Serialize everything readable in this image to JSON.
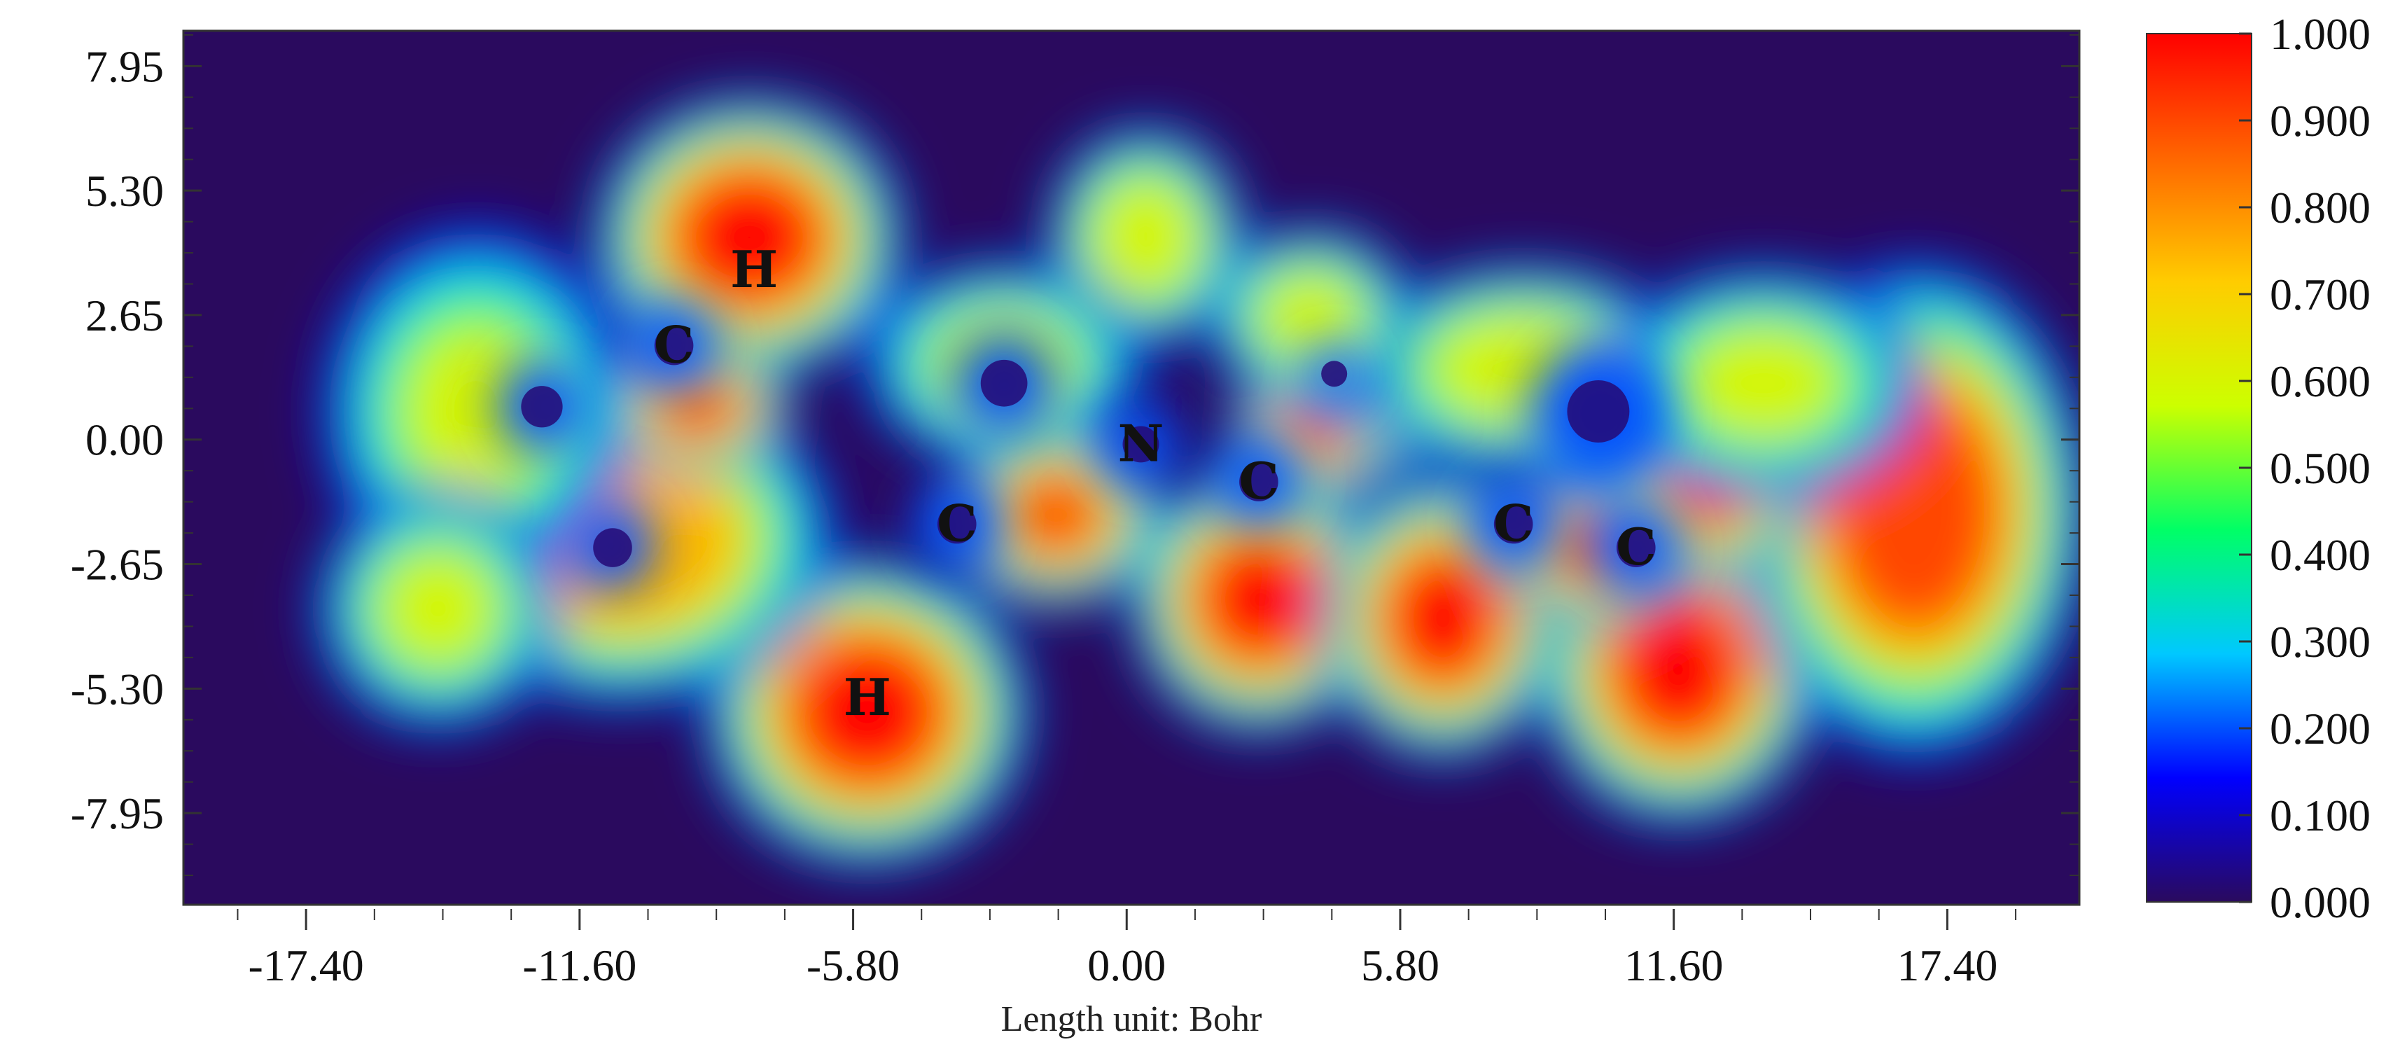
{
  "chart_data": {
    "type": "heatmap",
    "title": "",
    "xlabel": "Length unit: Bohr",
    "ylabel": "",
    "x_ticks": [
      -17.4,
      -11.6,
      -5.8,
      0.0,
      5.8,
      11.6,
      17.4
    ],
    "x_tick_labels": [
      "-17.40",
      "-11.60",
      "-5.80",
      "0.00",
      "5.80",
      "11.60",
      "17.40"
    ],
    "y_ticks": [
      7.95,
      5.3,
      2.65,
      0.0,
      -2.65,
      -5.3,
      -7.95
    ],
    "y_tick_labels": [
      "7.95",
      "5.30",
      "2.65",
      "0.00",
      "-2.65",
      "-5.30",
      "-7.95"
    ],
    "xlim": [
      -20.0,
      20.2
    ],
    "ylim": [
      -9.9,
      8.7
    ],
    "colorbar": {
      "min": 0.0,
      "max": 1.0,
      "ticks": [
        1.0,
        0.9,
        0.8,
        0.7,
        0.6,
        0.5,
        0.4,
        0.3,
        0.2,
        0.1,
        0.0
      ],
      "tick_labels": [
        "1.000",
        "0.900",
        "0.800",
        "0.700",
        "0.600",
        "0.500",
        "0.400",
        "0.300",
        "0.200",
        "0.100",
        "0.000"
      ],
      "colormap": [
        "#2a0a5e",
        "#0000ff",
        "#00c8ff",
        "#00ff66",
        "#ccff00",
        "#ffcc00",
        "#ff6600",
        "#ff0000"
      ]
    },
    "background_color": "#2a0a5e",
    "atoms": [
      {
        "label": "C",
        "x": -9.6,
        "y": 2.0
      },
      {
        "label": "H",
        "x": -7.9,
        "y": 3.6
      },
      {
        "label": "C",
        "x": -3.6,
        "y": -1.8
      },
      {
        "label": "H",
        "x": -5.5,
        "y": -5.5
      },
      {
        "label": "N",
        "x": 0.3,
        "y": -0.1
      },
      {
        "label": "C",
        "x": 2.8,
        "y": -0.9
      },
      {
        "label": "C",
        "x": 8.2,
        "y": -1.8
      },
      {
        "label": "C",
        "x": 10.8,
        "y": -2.3
      }
    ],
    "hotspots": [
      {
        "x": -8.0,
        "y": 4.3,
        "rx": 2.3,
        "ry": 2.1,
        "value": 1.0
      },
      {
        "x": -5.5,
        "y": -5.8,
        "rx": 2.4,
        "ry": 2.3,
        "value": 1.0
      },
      {
        "x": 2.8,
        "y": -3.4,
        "rx": 1.9,
        "ry": 2.0,
        "value": 1.0
      },
      {
        "x": 6.7,
        "y": -3.8,
        "rx": 1.8,
        "ry": 2.1,
        "value": 1.0
      },
      {
        "x": 11.7,
        "y": -4.9,
        "rx": 2.1,
        "ry": 2.3,
        "value": 1.0
      },
      {
        "x": 16.7,
        "y": -1.5,
        "rx": 2.6,
        "ry": 3.7,
        "value": 0.97
      },
      {
        "x": -10.7,
        "y": -2.1,
        "rx": 3.2,
        "ry": 2.5,
        "value": 0.86
      },
      {
        "x": -13.8,
        "y": 0.6,
        "rx": 2.4,
        "ry": 2.9,
        "value": 0.6
      },
      {
        "x": -14.6,
        "y": -3.6,
        "rx": 1.9,
        "ry": 1.9,
        "value": 0.62
      },
      {
        "x": -9.1,
        "y": 0.7,
        "rx": 1.4,
        "ry": 1.0,
        "value": 0.95
      },
      {
        "x": 0.4,
        "y": 4.3,
        "rx": 1.5,
        "ry": 1.7,
        "value": 0.72
      },
      {
        "x": -2.6,
        "y": 1.6,
        "rx": 2.2,
        "ry": 1.6,
        "value": 0.62
      },
      {
        "x": -1.5,
        "y": -1.6,
        "rx": 1.6,
        "ry": 1.4,
        "value": 0.9
      },
      {
        "x": 4.2,
        "y": 0.3,
        "rx": 1.4,
        "ry": 1.1,
        "value": 0.93
      },
      {
        "x": 6.0,
        "y": 0.8,
        "rx": 1.2,
        "ry": 1.0,
        "value": 0.9
      },
      {
        "x": 8.4,
        "y": 1.5,
        "rx": 2.6,
        "ry": 1.6,
        "value": 0.7
      },
      {
        "x": 9.8,
        "y": -2.3,
        "rx": 1.3,
        "ry": 1.2,
        "value": 0.92
      },
      {
        "x": 12.3,
        "y": -1.0,
        "rx": 1.6,
        "ry": 1.5,
        "value": 0.9
      },
      {
        "x": 13.5,
        "y": 1.2,
        "rx": 2.5,
        "ry": 1.8,
        "value": 0.62
      },
      {
        "x": 3.9,
        "y": 2.6,
        "rx": 1.6,
        "ry": 1.4,
        "value": 0.65
      }
    ],
    "holes": [
      {
        "x": -9.6,
        "y": 2.0,
        "r": 0.75
      },
      {
        "x": -3.6,
        "y": -1.8,
        "r": 0.75
      },
      {
        "x": 0.3,
        "y": -0.1,
        "r": 0.7
      },
      {
        "x": 2.8,
        "y": -0.9,
        "r": 0.75
      },
      {
        "x": 8.2,
        "y": -1.8,
        "r": 0.75
      },
      {
        "x": 10.8,
        "y": -2.3,
        "r": 0.75
      },
      {
        "x": -10.9,
        "y": -2.3,
        "r": 0.75
      },
      {
        "x": 10.0,
        "y": 0.6,
        "r": 1.2
      },
      {
        "x": -12.4,
        "y": 0.7,
        "r": 0.8
      },
      {
        "x": -2.6,
        "y": 1.2,
        "r": 0.9
      },
      {
        "x": 4.4,
        "y": 1.4,
        "r": 0.5
      }
    ]
  }
}
